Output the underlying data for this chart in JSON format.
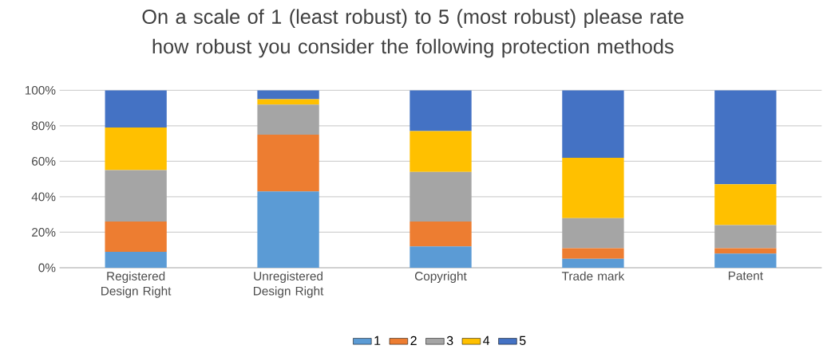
{
  "chart_data": {
    "type": "bar",
    "stacked": true,
    "title": "On a scale of 1 (least robust) to 5 (most robust) please rate how robust you consider the following protection methods",
    "categories": [
      "Registered Design Right",
      "Unregistered Design Right",
      "Copyright",
      "Trade mark",
      "Patent"
    ],
    "series": [
      {
        "name": "1",
        "color": "#5b9bd5",
        "values": [
          9,
          43,
          12,
          5,
          8
        ]
      },
      {
        "name": "2",
        "color": "#ed7d31",
        "values": [
          17,
          32,
          14,
          6,
          3
        ]
      },
      {
        "name": "3",
        "color": "#a5a5a5",
        "values": [
          29,
          17,
          28,
          17,
          13
        ]
      },
      {
        "name": "4",
        "color": "#ffc000",
        "values": [
          24,
          3,
          23,
          34,
          23
        ]
      },
      {
        "name": "5",
        "color": "#4472c4",
        "values": [
          21,
          5,
          23,
          38,
          53
        ]
      }
    ],
    "ylim": [
      0,
      100
    ],
    "yticks": [
      {
        "value": 0,
        "label": "0%"
      },
      {
        "value": 20,
        "label": "20%"
      },
      {
        "value": 40,
        "label": "40%"
      },
      {
        "value": 60,
        "label": "60%"
      },
      {
        "value": 80,
        "label": "80%"
      },
      {
        "value": 100,
        "label": "100%"
      }
    ],
    "grid": "y",
    "legend": "bottom"
  }
}
